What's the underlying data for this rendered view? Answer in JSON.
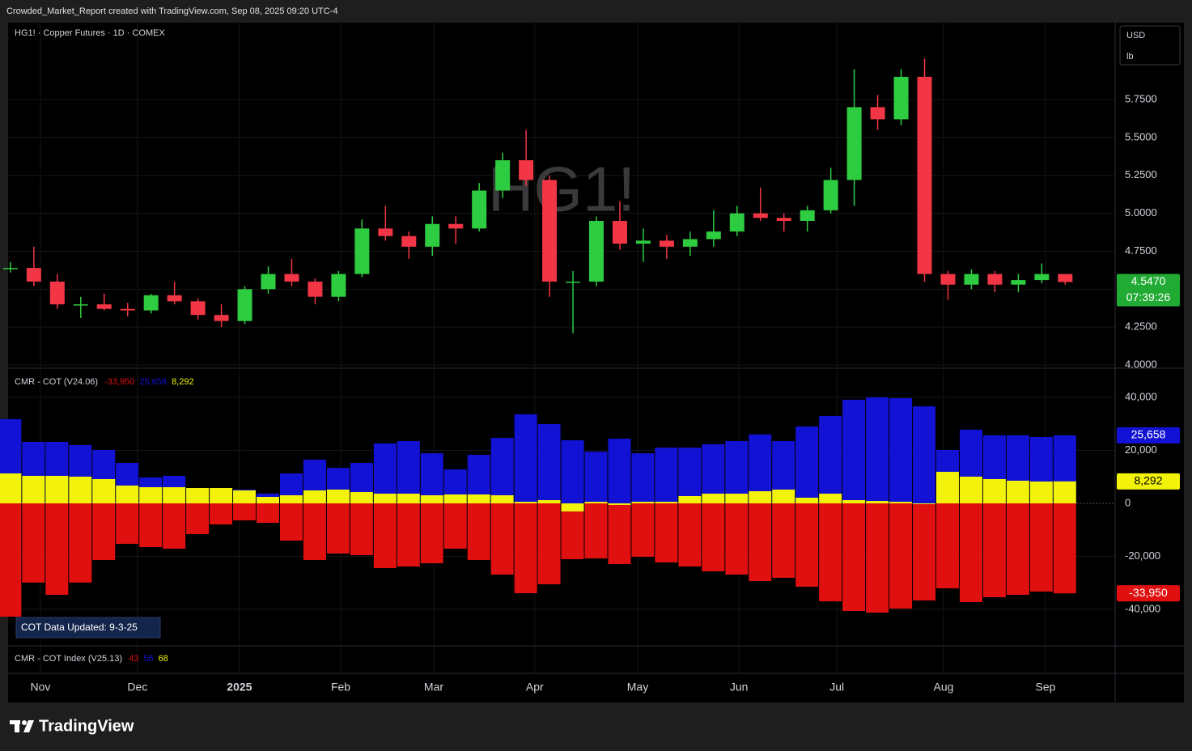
{
  "header": {
    "title": "Crowded_Market_Report created with TradingView.com, Sep 08, 2025 09:20 UTC-4"
  },
  "chart_data": [
    {
      "type": "candlestick",
      "title": "HG1! · Copper Futures · 1D · COMEX",
      "watermark": "HG1!",
      "currency": "USD",
      "unit": "lb",
      "open": [
        4.64,
        4.64,
        4.55,
        4.4,
        4.4,
        4.37,
        4.36,
        4.46,
        4.42,
        4.33,
        4.29,
        4.5,
        4.6,
        4.55,
        4.45,
        4.6,
        4.9,
        4.85,
        4.78,
        4.93,
        4.9,
        5.15,
        5.35,
        5.22,
        4.55,
        4.55,
        4.95,
        4.8,
        4.82,
        4.78,
        4.83,
        4.88,
        5.0,
        4.97,
        4.95,
        5.02,
        5.22,
        5.7,
        5.62,
        5.9,
        4.6,
        4.53,
        4.6,
        4.53,
        4.56,
        4.6
      ],
      "high": [
        4.68,
        4.78,
        4.6,
        4.45,
        4.47,
        4.41,
        4.47,
        4.55,
        4.44,
        4.4,
        4.52,
        4.65,
        4.7,
        4.57,
        4.62,
        4.96,
        5.05,
        4.88,
        4.98,
        4.98,
        5.2,
        5.4,
        5.55,
        5.25,
        4.62,
        4.98,
        5.08,
        4.9,
        4.86,
        4.88,
        5.02,
        5.05,
        5.17,
        5.0,
        5.05,
        5.3,
        5.95,
        5.78,
        5.95,
        6.02,
        4.62,
        4.63,
        4.62,
        4.6,
        4.67,
        4.6
      ],
      "low": [
        4.61,
        4.52,
        4.37,
        4.31,
        4.36,
        4.32,
        4.34,
        4.4,
        4.3,
        4.25,
        4.27,
        4.47,
        4.52,
        4.4,
        4.42,
        4.58,
        4.82,
        4.7,
        4.72,
        4.8,
        4.88,
        5.1,
        5.18,
        4.45,
        4.21,
        4.52,
        4.76,
        4.68,
        4.7,
        4.72,
        4.78,
        4.85,
        4.95,
        4.88,
        4.88,
        5.0,
        5.05,
        5.55,
        5.58,
        4.55,
        4.43,
        4.5,
        4.48,
        4.48,
        4.54,
        4.53
      ],
      "close": [
        4.64,
        4.55,
        4.4,
        4.4,
        4.37,
        4.36,
        4.46,
        4.42,
        4.33,
        4.29,
        4.5,
        4.6,
        4.55,
        4.45,
        4.6,
        4.9,
        4.85,
        4.78,
        4.93,
        4.9,
        5.15,
        5.35,
        5.22,
        4.55,
        4.55,
        4.95,
        4.8,
        4.82,
        4.78,
        4.83,
        4.88,
        5.0,
        4.97,
        4.95,
        5.02,
        5.22,
        5.7,
        5.62,
        5.9,
        4.6,
        4.53,
        4.6,
        4.53,
        4.56,
        4.6,
        4.547
      ],
      "up_color": "#2ecc40",
      "down_color": "#f23645",
      "last_price_label": "4.5470",
      "countdown": "07:39:26",
      "badge_color": "#22ab34",
      "xlim": [
        -0.1,
        47.13
      ],
      "xticks": [
        {
          "value": 1.28,
          "label": "Nov"
        },
        {
          "value": 5.42,
          "label": "Dec"
        },
        {
          "value": 9.77,
          "label": "2025"
        },
        {
          "value": 14.09,
          "label": "Feb"
        },
        {
          "value": 18.06,
          "label": "Mar"
        },
        {
          "value": 22.37,
          "label": "Apr"
        },
        {
          "value": 26.76,
          "label": "May"
        },
        {
          "value": 31.08,
          "label": "Jun"
        },
        {
          "value": 35.26,
          "label": "Jul"
        },
        {
          "value": 39.81,
          "label": "Aug"
        },
        {
          "value": 44.16,
          "label": "Sep"
        }
      ],
      "ylim": [
        3.979,
        6.257
      ],
      "yticks": [
        {
          "value": 4.0,
          "label": "4.0000"
        },
        {
          "value": 4.25,
          "label": "4.2500"
        },
        {
          "value": 4.5,
          "label": "4.5000"
        },
        {
          "value": 4.75,
          "label": "4.7500"
        },
        {
          "value": 5.0,
          "label": "5.0000"
        },
        {
          "value": 5.25,
          "label": "5.2500"
        },
        {
          "value": 5.5,
          "label": "5.5000"
        },
        {
          "value": 5.75,
          "label": "5.7500"
        }
      ],
      "grid": true
    },
    {
      "type": "bar",
      "title": "CMR - COT (V24.06)",
      "note": "COT Data Updated:  9-3-25",
      "xlim": [
        -0.1,
        47.13
      ],
      "ylim": [
        -53740,
        50990
      ],
      "yticks": [
        {
          "value": 40000,
          "label": "40,000"
        },
        {
          "value": 20000,
          "label": "20,000"
        },
        0,
        {
          "value": -20000,
          "label": "-20,000"
        },
        {
          "value": -40000,
          "label": "-40,000"
        }
      ],
      "series": [
        {
          "color": "#e01010",
          "last_label": "-33,950",
          "values": [
            -42750,
            -29900,
            -34500,
            -29900,
            -21370,
            -15270,
            -16500,
            -17100,
            -11600,
            -7940,
            -6410,
            -7330,
            -14050,
            -21370,
            -18930,
            -19540,
            -24430,
            -23820,
            -22600,
            -17100,
            -21370,
            -26870,
            -33890,
            -30530,
            -21070,
            -20760,
            -22900,
            -20150,
            -22290,
            -23820,
            -25650,
            -26870,
            -29310,
            -28090,
            -31450,
            -36950,
            -40610,
            -41220,
            -39690,
            -36640,
            -32060,
            -37250,
            -35420,
            -34500,
            -33280,
            -33950
          ]
        },
        {
          "color": "#1212d4",
          "last_label": "25,658",
          "values": [
            31760,
            23200,
            23200,
            22000,
            20150,
            15270,
            9770,
            10380,
            5800,
            5800,
            5200,
            3700,
            11300,
            16500,
            13400,
            15270,
            22600,
            23500,
            18900,
            12800,
            18300,
            24700,
            33600,
            29900,
            23800,
            19500,
            24400,
            18900,
            21000,
            21000,
            22300,
            23500,
            26000,
            23500,
            29000,
            33000,
            39100,
            40000,
            39700,
            36600,
            20150,
            27800,
            25650,
            25650,
            25040,
            25658
          ]
        },
        {
          "color": "#f2f20a",
          "last_label": "8,292",
          "values": [
            11300,
            10380,
            10380,
            10080,
            9160,
            6720,
            6100,
            6100,
            5800,
            5800,
            4900,
            2440,
            3050,
            4900,
            5200,
            4270,
            3660,
            3660,
            3050,
            3360,
            3360,
            3050,
            600,
            1220,
            -3050,
            600,
            -600,
            600,
            600,
            2750,
            3660,
            3660,
            4580,
            5200,
            2140,
            3660,
            1220,
            900,
            600,
            -300,
            11900,
            10080,
            9160,
            8550,
            8240,
            8292
          ]
        }
      ],
      "grid": true
    }
  ],
  "index_pane": {
    "title": "CMR - COT Index (V25.13)",
    "values": [
      43,
      56,
      68
    ],
    "colors": [
      "#e01010",
      "#1212d4",
      "#f2f20a"
    ]
  },
  "footer": {
    "brand": "TradingView"
  }
}
